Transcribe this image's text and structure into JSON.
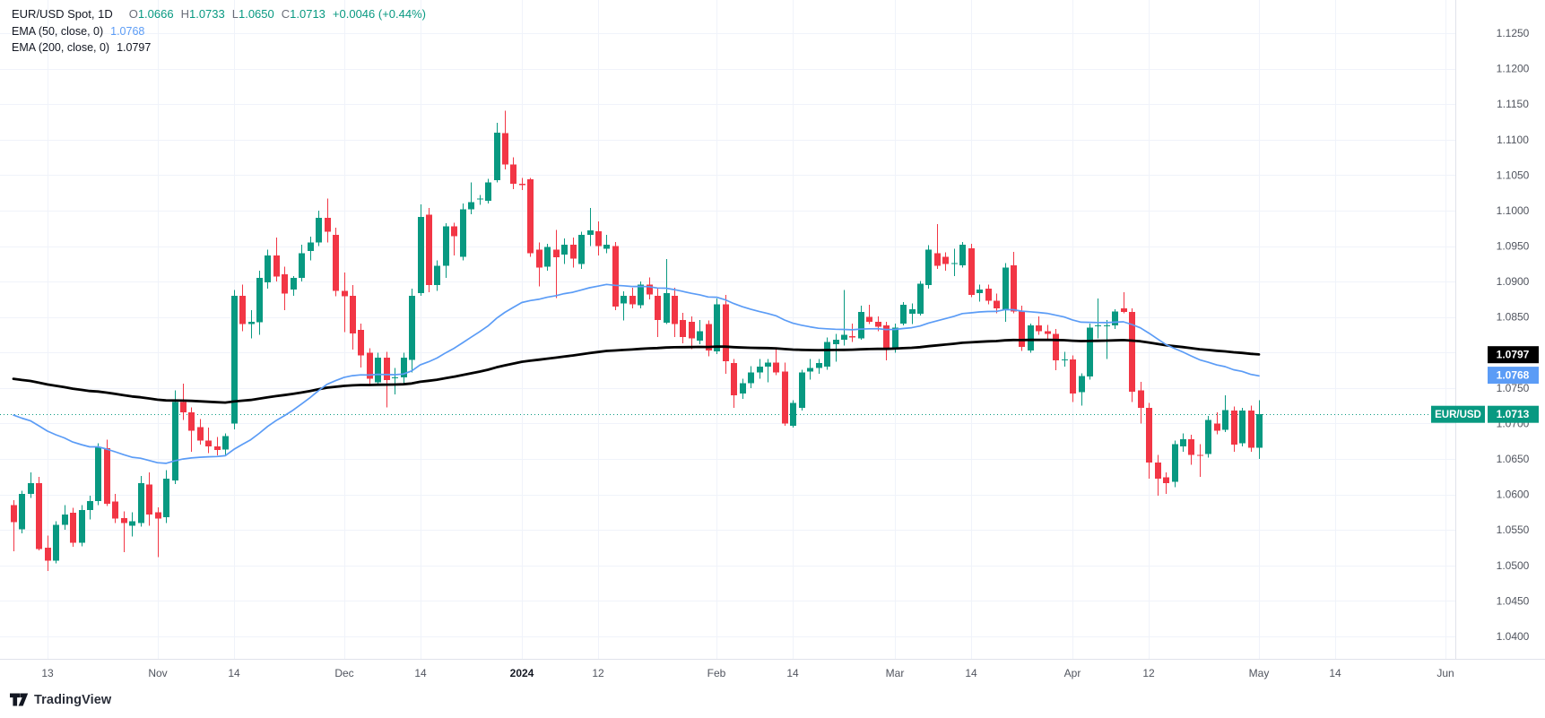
{
  "legend": {
    "symbol": "EUR/USD Spot, 1D",
    "ohlc": [
      {
        "k": "O",
        "v": "1.0666"
      },
      {
        "k": "H",
        "v": "1.0733"
      },
      {
        "k": "L",
        "v": "1.0650"
      },
      {
        "k": "C",
        "v": "1.0713"
      }
    ],
    "change": "+0.0046 (+0.44%)",
    "ema50_label": "EMA (50, close, 0)",
    "ema50_value": "1.0768",
    "ema200_label": "EMA (200, close, 0)",
    "ema200_value": "1.0797"
  },
  "logo": {
    "text": "TradingView"
  },
  "colors": {
    "up": "#089981",
    "down": "#F23645",
    "ema50": "#5b9cf6",
    "ema200": "#000000",
    "grid": "#f0f3fa",
    "axis_border": "#e0e3eb",
    "axis_text": "#50545e",
    "axis_text_bold": "#131722",
    "dotted_line": "#089981",
    "badge_last_bg": "#089981",
    "badge_ema50_bg": "#5b9cf6",
    "badge_ema200_bg": "#000000",
    "badge_fg": "#ffffff"
  },
  "price_axis": {
    "ticks": [
      "1.1250",
      "1.1200",
      "1.1150",
      "1.1100",
      "1.1050",
      "1.1000",
      "1.0950",
      "1.0900",
      "1.0850",
      "1.0800",
      "1.0750",
      "1.0700",
      "1.0650",
      "1.0600",
      "1.0550",
      "1.0500",
      "1.0450",
      "1.0400"
    ],
    "badges": [
      {
        "name": "ema200-price-badge",
        "text": "1.0797",
        "price": 1.0797,
        "bg": "#000000"
      },
      {
        "name": "ema50-price-badge",
        "text": "1.0768",
        "price": 1.0768,
        "bg": "#5b9cf6"
      },
      {
        "name": "last-price-badge",
        "text": "1.0713",
        "price": 1.0713,
        "bg": "#089981",
        "tag": "EUR/USD"
      }
    ]
  },
  "time_axis": {
    "labels": [
      {
        "t": "13",
        "i": 4
      },
      {
        "t": "Nov",
        "i": 17
      },
      {
        "t": "14",
        "i": 26
      },
      {
        "t": "Dec",
        "i": 39
      },
      {
        "t": "14",
        "i": 48
      },
      {
        "t": "2024",
        "i": 60,
        "b": 1
      },
      {
        "t": "12",
        "i": 69
      },
      {
        "t": "Feb",
        "i": 83
      },
      {
        "t": "14",
        "i": 92
      },
      {
        "t": "Mar",
        "i": 104
      },
      {
        "t": "14",
        "i": 113
      },
      {
        "t": "Apr",
        "i": 125
      },
      {
        "t": "12",
        "i": 134
      },
      {
        "t": "May",
        "i": 147
      },
      {
        "t": "14",
        "i": 156
      },
      {
        "t": "Jun",
        "i": 169
      }
    ]
  },
  "chart_data": {
    "type": "candlestick",
    "title": "EUR/USD Spot, 1D",
    "ylim": [
      1.04,
      1.125
    ],
    "grid_step": 0.005,
    "legend_position": "top-left",
    "last_price": 1.0713,
    "ema": {
      "periods": [
        50,
        200
      ],
      "seed50": 1.0718,
      "seed200": 1.0765,
      "end50": 1.0768,
      "end200": 1.0797
    },
    "candles": [
      [
        1.0585,
        1.0592,
        1.052,
        1.0561
      ],
      [
        1.0551,
        1.0605,
        1.0545,
        1.0601
      ],
      [
        1.0601,
        1.0631,
        1.0595,
        1.0616
      ],
      [
        1.0616,
        1.0625,
        1.0521,
        1.0523
      ],
      [
        1.0525,
        1.0542,
        1.0492,
        1.0507
      ],
      [
        1.0507,
        1.0562,
        1.0503,
        1.0557
      ],
      [
        1.0557,
        1.0585,
        1.055,
        1.0572
      ],
      [
        1.0574,
        1.0581,
        1.0526,
        1.0532
      ],
      [
        1.0532,
        1.0585,
        1.0527,
        1.0578
      ],
      [
        1.0578,
        1.0598,
        1.0565,
        1.0591
      ],
      [
        1.0591,
        1.0672,
        1.0585,
        1.0667
      ],
      [
        1.0665,
        1.0677,
        1.0584,
        1.0587
      ],
      [
        1.059,
        1.0601,
        1.056,
        1.0566
      ],
      [
        1.0567,
        1.0576,
        1.0519,
        1.056
      ],
      [
        1.0556,
        1.0575,
        1.0541,
        1.0562
      ],
      [
        1.056,
        1.0626,
        1.0555,
        1.0616
      ],
      [
        1.0614,
        1.0631,
        1.0556,
        1.0572
      ],
      [
        1.0575,
        1.0582,
        1.0512,
        1.0566
      ],
      [
        1.0568,
        1.0634,
        1.056,
        1.0622
      ],
      [
        1.062,
        1.0747,
        1.0615,
        1.073
      ],
      [
        1.073,
        1.0756,
        1.0705,
        1.0716
      ],
      [
        1.0716,
        1.0723,
        1.066,
        1.069
      ],
      [
        1.0695,
        1.0706,
        1.067,
        1.0676
      ],
      [
        1.0676,
        1.0694,
        1.0658,
        1.0668
      ],
      [
        1.0668,
        1.0681,
        1.0655,
        1.0663
      ],
      [
        1.0663,
        1.0686,
        1.0656,
        1.0682
      ],
      [
        1.07,
        1.0888,
        1.0692,
        1.088
      ],
      [
        1.088,
        1.0896,
        1.083,
        1.084
      ],
      [
        1.084,
        1.086,
        1.082,
        1.0843
      ],
      [
        1.0843,
        1.0915,
        1.0825,
        1.0905
      ],
      [
        1.0899,
        1.0945,
        1.089,
        1.0937
      ],
      [
        1.0937,
        1.0962,
        1.09,
        1.0907
      ],
      [
        1.091,
        1.0921,
        1.086,
        1.0883
      ],
      [
        1.0889,
        1.0908,
        1.088,
        1.0905
      ],
      [
        1.0905,
        1.0952,
        1.09,
        1.094
      ],
      [
        1.0943,
        1.0963,
        1.093,
        1.0955
      ],
      [
        1.0955,
        1.1,
        1.095,
        1.099
      ],
      [
        1.099,
        1.1017,
        1.0955,
        1.097
      ],
      [
        1.0966,
        1.0976,
        1.0879,
        1.0887
      ],
      [
        1.0887,
        1.0913,
        1.0829,
        1.0879
      ],
      [
        1.088,
        1.0895,
        1.0804,
        1.0827
      ],
      [
        1.0832,
        1.0841,
        1.0779,
        1.0796
      ],
      [
        1.08,
        1.0806,
        1.0755,
        1.0763
      ],
      [
        1.0758,
        1.08,
        1.0753,
        1.0793
      ],
      [
        1.0793,
        1.0801,
        1.0723,
        1.0761
      ],
      [
        1.0764,
        1.0778,
        1.0741,
        1.0765
      ],
      [
        1.0765,
        1.08,
        1.0757,
        1.0793
      ],
      [
        1.079,
        1.089,
        1.0772,
        1.088
      ],
      [
        1.0884,
        1.1009,
        1.088,
        1.0991
      ],
      [
        1.0994,
        1.1004,
        1.0885,
        1.0895
      ],
      [
        1.0895,
        1.093,
        1.0887,
        1.0922
      ],
      [
        1.0922,
        1.0982,
        1.0905,
        1.0978
      ],
      [
        1.0978,
        1.0983,
        1.0937,
        1.0964
      ],
      [
        1.0935,
        1.101,
        1.093,
        1.1002
      ],
      [
        1.1002,
        1.104,
        1.0995,
        1.1012
      ],
      [
        1.1017,
        1.1022,
        1.1008,
        1.1017
      ],
      [
        1.1014,
        1.1045,
        1.101,
        1.104
      ],
      [
        1.1043,
        1.1124,
        1.104,
        1.111
      ],
      [
        1.1109,
        1.1141,
        1.1058,
        1.1065
      ],
      [
        1.1065,
        1.1075,
        1.103,
        1.1038
      ],
      [
        1.1038,
        1.1046,
        1.1029,
        1.1036
      ],
      [
        1.1044,
        1.1046,
        1.0935,
        1.094
      ],
      [
        1.0945,
        1.0955,
        1.0893,
        1.092
      ],
      [
        1.0921,
        1.0953,
        1.0915,
        1.0949
      ],
      [
        1.0945,
        1.0973,
        1.0877,
        1.0934
      ],
      [
        1.0938,
        1.0961,
        1.0925,
        1.0952
      ],
      [
        1.0952,
        1.0962,
        1.092,
        1.0932
      ],
      [
        1.0925,
        1.097,
        1.0918,
        1.0966
      ],
      [
        1.0966,
        1.1004,
        1.095,
        1.0972
      ],
      [
        1.0971,
        1.0985,
        1.0937,
        1.095
      ],
      [
        1.0946,
        1.0966,
        1.094,
        1.0952
      ],
      [
        1.095,
        1.0956,
        1.086,
        1.0865
      ],
      [
        1.0869,
        1.0886,
        1.0845,
        1.088
      ],
      [
        1.088,
        1.0891,
        1.0862,
        1.0868
      ],
      [
        1.0867,
        1.09,
        1.0862,
        1.0896
      ],
      [
        1.0896,
        1.0906,
        1.0875,
        1.0882
      ],
      [
        1.088,
        1.0891,
        1.0822,
        1.0846
      ],
      [
        1.0842,
        1.0932,
        1.084,
        1.0884
      ],
      [
        1.088,
        1.0891,
        1.0822,
        1.084
      ],
      [
        1.0846,
        1.0856,
        1.0813,
        1.0822
      ],
      [
        1.0843,
        1.0851,
        1.0805,
        1.082
      ],
      [
        1.0817,
        1.0846,
        1.0812,
        1.083
      ],
      [
        1.084,
        1.0845,
        1.0795,
        1.0803
      ],
      [
        1.0802,
        1.0876,
        1.0798,
        1.0868
      ],
      [
        1.0868,
        1.0881,
        1.077,
        1.0788
      ],
      [
        1.0785,
        1.0791,
        1.0722,
        1.074
      ],
      [
        1.0742,
        1.0763,
        1.0735,
        1.0757
      ],
      [
        1.0757,
        1.0781,
        1.075,
        1.0772
      ],
      [
        1.0772,
        1.0791,
        1.0763,
        1.078
      ],
      [
        1.078,
        1.0791,
        1.0758,
        1.0786
      ],
      [
        1.0786,
        1.0806,
        1.0768,
        1.0772
      ],
      [
        1.0773,
        1.0786,
        1.0697,
        1.07
      ],
      [
        1.0697,
        1.0733,
        1.0694,
        1.0729
      ],
      [
        1.0722,
        1.0776,
        1.0718,
        1.0772
      ],
      [
        1.0773,
        1.0791,
        1.0762,
        1.0778
      ],
      [
        1.0778,
        1.0791,
        1.077,
        1.0785
      ],
      [
        1.078,
        1.0821,
        1.0776,
        1.0815
      ],
      [
        1.0812,
        1.0826,
        1.0787,
        1.0818
      ],
      [
        1.0818,
        1.0888,
        1.081,
        1.0825
      ],
      [
        1.0823,
        1.0841,
        1.0815,
        1.0821
      ],
      [
        1.082,
        1.0866,
        1.0818,
        1.0857
      ],
      [
        1.085,
        1.0867,
        1.084,
        1.0843
      ],
      [
        1.0843,
        1.0851,
        1.083,
        1.0836
      ],
      [
        1.0838,
        1.0843,
        1.0789,
        1.0805
      ],
      [
        1.0807,
        1.0841,
        1.08,
        1.0835
      ],
      [
        1.0841,
        1.0871,
        1.0838,
        1.0867
      ],
      [
        1.0855,
        1.0869,
        1.084,
        1.0861
      ],
      [
        1.0855,
        1.0901,
        1.0852,
        1.0897
      ],
      [
        1.0895,
        1.0951,
        1.089,
        1.0945
      ],
      [
        1.094,
        1.0981,
        1.0918,
        1.0922
      ],
      [
        1.0935,
        1.0941,
        1.0915,
        1.0925
      ],
      [
        1.0926,
        1.0946,
        1.0908,
        1.0926
      ],
      [
        1.0923,
        1.0956,
        1.092,
        1.0952
      ],
      [
        1.0947,
        1.0953,
        1.0878,
        1.0881
      ],
      [
        1.0884,
        1.0896,
        1.0872,
        1.0889
      ],
      [
        1.089,
        1.0896,
        1.0868,
        1.0873
      ],
      [
        1.0873,
        1.0883,
        1.0855,
        1.0862
      ],
      [
        1.086,
        1.0926,
        1.0843,
        1.092
      ],
      [
        1.0923,
        1.0942,
        1.0855,
        1.0858
      ],
      [
        1.0858,
        1.0866,
        1.0802,
        1.0808
      ],
      [
        1.0803,
        1.0841,
        1.08,
        1.0838
      ],
      [
        1.0838,
        1.0851,
        1.0825,
        1.083
      ],
      [
        1.083,
        1.0839,
        1.0816,
        1.0826
      ],
      [
        1.0826,
        1.0833,
        1.0775,
        1.0789
      ],
      [
        1.079,
        1.0801,
        1.078,
        1.079
      ],
      [
        1.079,
        1.0796,
        1.073,
        1.0742
      ],
      [
        1.0744,
        1.0771,
        1.0725,
        1.0767
      ],
      [
        1.0766,
        1.0841,
        1.0762,
        1.0835
      ],
      [
        1.0837,
        1.0876,
        1.082,
        1.0838
      ],
      [
        1.0837,
        1.0846,
        1.0791,
        1.0838
      ],
      [
        1.0838,
        1.0861,
        1.0833,
        1.0858
      ],
      [
        1.0862,
        1.0885,
        1.0855,
        1.0857
      ],
      [
        1.0857,
        1.0862,
        1.073,
        1.0745
      ],
      [
        1.0747,
        1.0759,
        1.07,
        1.0722
      ],
      [
        1.0722,
        1.0729,
        1.0622,
        1.0645
      ],
      [
        1.0645,
        1.0656,
        1.0598,
        1.0622
      ],
      [
        1.0624,
        1.0631,
        1.0601,
        1.0616
      ],
      [
        1.0618,
        1.0676,
        1.061,
        1.0671
      ],
      [
        1.0668,
        1.0686,
        1.066,
        1.0678
      ],
      [
        1.0678,
        1.0684,
        1.0642,
        1.0656
      ],
      [
        1.0656,
        1.0671,
        1.0625,
        1.0655
      ],
      [
        1.0657,
        1.0711,
        1.0652,
        1.0705
      ],
      [
        1.07,
        1.0716,
        1.0685,
        1.069
      ],
      [
        1.0691,
        1.074,
        1.0688,
        1.0719
      ],
      [
        1.0718,
        1.0724,
        1.066,
        1.067
      ],
      [
        1.0672,
        1.0722,
        1.0668,
        1.0718
      ],
      [
        1.0718,
        1.0725,
        1.066,
        1.0666
      ],
      [
        1.0666,
        1.0733,
        1.065,
        1.0713
      ]
    ]
  }
}
